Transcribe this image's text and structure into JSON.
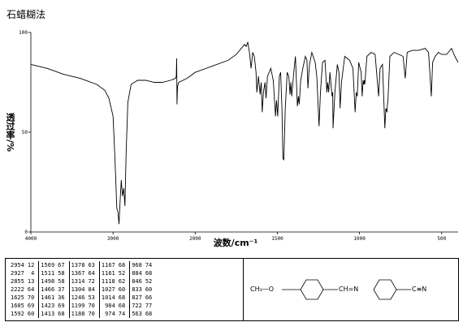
{
  "chart_data": {
    "type": "line",
    "title": "石蜡糊法",
    "xlabel": "波数/cm⁻¹",
    "ylabel": "透过率/%",
    "x": [
      4000,
      3800,
      3600,
      3400,
      3200,
      3100,
      3050,
      3000,
      2975,
      2954,
      2940,
      2927,
      2915,
      2900,
      2885,
      2870,
      2855,
      2840,
      2820,
      2780,
      2700,
      2600,
      2500,
      2400,
      2300,
      2240,
      2230,
      2225,
      2222,
      2215,
      2200,
      2100,
      2000,
      1900,
      1800,
      1750,
      1720,
      1700,
      1690,
      1680,
      1670,
      1660,
      1650,
      1640,
      1630,
      1625,
      1615,
      1605,
      1598,
      1592,
      1585,
      1575,
      1569,
      1560,
      1540,
      1525,
      1511,
      1505,
      1498,
      1488,
      1480,
      1472,
      1466,
      1461,
      1452,
      1440,
      1430,
      1423,
      1418,
      1413,
      1400,
      1390,
      1378,
      1372,
      1367,
      1358,
      1345,
      1330,
      1320,
      1314,
      1308,
      1304,
      1290,
      1270,
      1260,
      1246,
      1238,
      1225,
      1210,
      1199,
      1194,
      1188,
      1180,
      1167,
      1163,
      1161,
      1150,
      1135,
      1125,
      1118,
      1110,
      1090,
      1060,
      1040,
      1027,
      1020,
      1014,
      1005,
      990,
      984,
      978,
      974,
      971,
      968,
      955,
      930,
      905,
      884,
      875,
      860,
      846,
      840,
      833,
      830,
      827,
      815,
      790,
      760,
      735,
      722,
      710,
      680,
      640,
      600,
      580,
      563,
      555,
      540,
      520,
      500,
      470,
      440,
      420,
      400
    ],
    "values": [
      84,
      82,
      79,
      77,
      74,
      71,
      67,
      58,
      35,
      12,
      10,
      4,
      15,
      26,
      18,
      22,
      13,
      40,
      65,
      74,
      76,
      76,
      75,
      75,
      76,
      77,
      78,
      87,
      64,
      73,
      75,
      77,
      80,
      83,
      86,
      89,
      92,
      94,
      93,
      95,
      90,
      82,
      90,
      88,
      80,
      70,
      78,
      69,
      75,
      60,
      70,
      75,
      67,
      78,
      82,
      76,
      58,
      66,
      58,
      78,
      80,
      62,
      37,
      36,
      62,
      80,
      78,
      69,
      75,
      68,
      80,
      88,
      63,
      68,
      64,
      76,
      82,
      88,
      86,
      72,
      80,
      84,
      90,
      85,
      78,
      53,
      70,
      85,
      86,
      70,
      75,
      70,
      80,
      68,
      70,
      52,
      70,
      84,
      80,
      62,
      75,
      88,
      86,
      82,
      60,
      70,
      68,
      85,
      80,
      68,
      76,
      74,
      76,
      74,
      88,
      90,
      89,
      68,
      82,
      84,
      52,
      62,
      60,
      64,
      66,
      88,
      90,
      89,
      88,
      77,
      90,
      91,
      91,
      92,
      90,
      68,
      85,
      88,
      90,
      89,
      89,
      92,
      88,
      85
    ],
    "color": "#000000",
    "xlim": [
      4000,
      400
    ],
    "x_scale_break": 2000,
    "xticks": [
      4000,
      3000,
      2000,
      1500,
      1000,
      500
    ],
    "ylim": [
      0,
      100
    ],
    "yticks": [
      0,
      50,
      100
    ]
  },
  "peak_table": {
    "rows": [
      [
        [
          2954,
          12
        ],
        [
          1569,
          67
        ],
        [
          1378,
          63
        ],
        [
          1167,
          68
        ],
        [
          968,
          74
        ]
      ],
      [
        [
          2927,
          4
        ],
        [
          1511,
          58
        ],
        [
          1367,
          64
        ],
        [
          1161,
          52
        ],
        [
          884,
          68
        ]
      ],
      [
        [
          2855,
          13
        ],
        [
          1498,
          58
        ],
        [
          1314,
          72
        ],
        [
          1118,
          62
        ],
        [
          846,
          52
        ]
      ],
      [
        [
          2222,
          64
        ],
        [
          1466,
          37
        ],
        [
          1304,
          84
        ],
        [
          1027,
          60
        ],
        [
          833,
          60
        ]
      ],
      [
        [
          1625,
          70
        ],
        [
          1461,
          36
        ],
        [
          1246,
          53
        ],
        [
          1014,
          68
        ],
        [
          827,
          66
        ]
      ],
      [
        [
          1605,
          69
        ],
        [
          1423,
          69
        ],
        [
          1199,
          70
        ],
        [
          984,
          68
        ],
        [
          722,
          77
        ]
      ],
      [
        [
          1592,
          60
        ],
        [
          1413,
          68
        ],
        [
          1188,
          70
        ],
        [
          974,
          74
        ],
        [
          563,
          68
        ]
      ]
    ]
  },
  "structure": {
    "labels": [
      "CH₃—O",
      "CH=N",
      "C≡N"
    ]
  }
}
